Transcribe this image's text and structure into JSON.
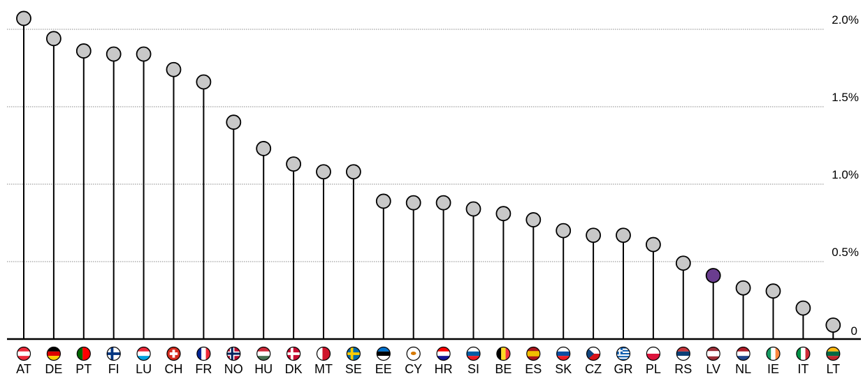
{
  "chart_data": {
    "type": "lollipop",
    "categories": [
      "AT",
      "DE",
      "PT",
      "FI",
      "LU",
      "CH",
      "FR",
      "NO",
      "HU",
      "DK",
      "MT",
      "SE",
      "EE",
      "CY",
      "HR",
      "SI",
      "BE",
      "ES",
      "SK",
      "CZ",
      "GR",
      "PL",
      "RS",
      "LV",
      "NL",
      "IE",
      "IT",
      "LT"
    ],
    "values": [
      2.07,
      1.94,
      1.86,
      1.84,
      1.84,
      1.74,
      1.66,
      1.4,
      1.23,
      1.13,
      1.08,
      1.08,
      0.89,
      0.88,
      0.88,
      0.84,
      0.81,
      0.77,
      0.7,
      0.67,
      0.67,
      0.61,
      0.49,
      0.41,
      0.33,
      0.31,
      0.2,
      0.09
    ],
    "highlight": "LV",
    "colors": {
      "default": "#c8c8c8",
      "highlight": "#6a3d8f",
      "stem": "#000000",
      "grid": "#888888"
    },
    "y_ticks": [
      {
        "value": 0,
        "label": "0"
      },
      {
        "value": 0.5,
        "label": "0.5%"
      },
      {
        "value": 1.0,
        "label": "1.0%"
      },
      {
        "value": 1.5,
        "label": "1.5%"
      },
      {
        "value": 2.0,
        "label": "2.0%"
      }
    ],
    "ylim": [
      0,
      2.2
    ],
    "grid": "dotted horizontal",
    "flags": {
      "AT": {
        "type": "h",
        "colors": [
          "#ed2939",
          "#ffffff",
          "#ed2939"
        ]
      },
      "DE": {
        "type": "h",
        "colors": [
          "#000000",
          "#dd0000",
          "#ffce00"
        ]
      },
      "PT": {
        "type": "vsplit",
        "colors": [
          "#006600",
          "#ff0000"
        ]
      },
      "FI": {
        "type": "cross",
        "colors": [
          "#ffffff",
          "#003580"
        ]
      },
      "LU": {
        "type": "h",
        "colors": [
          "#ed2939",
          "#ffffff",
          "#00a1de"
        ]
      },
      "CH": {
        "type": "swiss",
        "colors": [
          "#d52b1e",
          "#ffffff"
        ]
      },
      "FR": {
        "type": "v",
        "colors": [
          "#002395",
          "#ffffff",
          "#ed2939"
        ]
      },
      "NO": {
        "type": "cross2",
        "colors": [
          "#ba0c2f",
          "#ffffff",
          "#00205b"
        ]
      },
      "HU": {
        "type": "h",
        "colors": [
          "#ce2939",
          "#ffffff",
          "#477050"
        ]
      },
      "DK": {
        "type": "cross",
        "colors": [
          "#c60c30",
          "#ffffff"
        ]
      },
      "MT": {
        "type": "vsplit",
        "colors": [
          "#ffffff",
          "#cf142b"
        ]
      },
      "SE": {
        "type": "cross",
        "colors": [
          "#006aa7",
          "#fecc00"
        ]
      },
      "EE": {
        "type": "h",
        "colors": [
          "#0072ce",
          "#000000",
          "#ffffff"
        ]
      },
      "CY": {
        "type": "dot",
        "colors": [
          "#ffffff",
          "#d57800"
        ]
      },
      "HR": {
        "type": "h",
        "colors": [
          "#ff0000",
          "#ffffff",
          "#171796"
        ]
      },
      "SI": {
        "type": "h",
        "colors": [
          "#ffffff",
          "#005da4",
          "#ed1c24"
        ]
      },
      "BE": {
        "type": "v",
        "colors": [
          "#000000",
          "#fdda24",
          "#ef3340"
        ]
      },
      "ES": {
        "type": "h3",
        "colors": [
          "#aa151b",
          "#f1bf00",
          "#aa151b"
        ]
      },
      "SK": {
        "type": "h",
        "colors": [
          "#ffffff",
          "#0b4ea2",
          "#ee1c25"
        ]
      },
      "CZ": {
        "type": "cz",
        "colors": [
          "#ffffff",
          "#d7141a",
          "#11457e"
        ]
      },
      "GR": {
        "type": "stripes",
        "colors": [
          "#0d5eaf",
          "#ffffff"
        ]
      },
      "PL": {
        "type": "h2",
        "colors": [
          "#ffffff",
          "#dc143c"
        ]
      },
      "RS": {
        "type": "h",
        "colors": [
          "#c6363c",
          "#0c4076",
          "#ffffff"
        ]
      },
      "LV": {
        "type": "h3",
        "colors": [
          "#9e3039",
          "#ffffff",
          "#9e3039"
        ]
      },
      "NL": {
        "type": "h",
        "colors": [
          "#ae1c28",
          "#ffffff",
          "#21468b"
        ]
      },
      "IE": {
        "type": "v",
        "colors": [
          "#169b62",
          "#ffffff",
          "#ff883e"
        ]
      },
      "IT": {
        "type": "v",
        "colors": [
          "#009246",
          "#ffffff",
          "#ce2b37"
        ]
      },
      "LT": {
        "type": "h",
        "colors": [
          "#fdb913",
          "#006a44",
          "#c1272d"
        ]
      }
    }
  }
}
